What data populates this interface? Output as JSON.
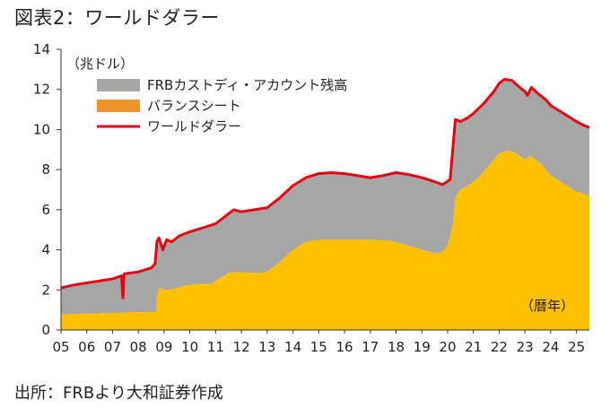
{
  "figure": {
    "title": "図表2：ワールドダラー",
    "source": "出所：FRBより大和証券作成"
  },
  "colors": {
    "custody": "#a6a6a6",
    "balance_sheet": "#ffc000",
    "balance_sheet_legend": "#f0932b",
    "world_dollar": "#e60012",
    "axis": "#333333"
  },
  "chart_data": {
    "type": "area",
    "ylabel": "（兆ドル）",
    "xlabel": "（暦年）",
    "ylim": [
      0,
      14
    ],
    "yticks": [
      0,
      2,
      4,
      6,
      8,
      10,
      12,
      14
    ],
    "xlim": [
      2005.0,
      2025.5
    ],
    "xtick_labels": [
      "05",
      "06",
      "07",
      "08",
      "09",
      "10",
      "11",
      "12",
      "13",
      "14",
      "15",
      "16",
      "17",
      "18",
      "19",
      "20",
      "21",
      "22",
      "23",
      "24",
      "25"
    ],
    "grid": false,
    "legend_position": "top-left",
    "legend": [
      {
        "key": "custody",
        "label": "FRBカストディ・アカウント残高",
        "kind": "area"
      },
      {
        "key": "balance_sheet",
        "label": "バランスシート",
        "kind": "area"
      },
      {
        "key": "world_dollar",
        "label": "ワールドダラー",
        "kind": "line"
      }
    ],
    "series": [
      {
        "key": "balance_sheet",
        "points": [
          [
            2005.0,
            0.78
          ],
          [
            2006.0,
            0.82
          ],
          [
            2007.0,
            0.85
          ],
          [
            2007.9,
            0.88
          ],
          [
            2008.7,
            0.9
          ],
          [
            2008.72,
            1.6
          ],
          [
            2008.8,
            2.1
          ],
          [
            2009.0,
            2.0
          ],
          [
            2009.4,
            2.05
          ],
          [
            2009.8,
            2.2
          ],
          [
            2010.3,
            2.3
          ],
          [
            2010.8,
            2.3
          ],
          [
            2011.2,
            2.6
          ],
          [
            2011.5,
            2.85
          ],
          [
            2011.9,
            2.9
          ],
          [
            2012.3,
            2.85
          ],
          [
            2012.8,
            2.85
          ],
          [
            2013.0,
            2.9
          ],
          [
            2013.5,
            3.4
          ],
          [
            2014.0,
            4.0
          ],
          [
            2014.5,
            4.4
          ],
          [
            2015.0,
            4.5
          ],
          [
            2016.0,
            4.5
          ],
          [
            2017.0,
            4.5
          ],
          [
            2017.8,
            4.45
          ],
          [
            2018.5,
            4.2
          ],
          [
            2019.0,
            4.0
          ],
          [
            2019.6,
            3.8
          ],
          [
            2019.8,
            3.9
          ],
          [
            2020.0,
            4.2
          ],
          [
            2020.2,
            5.2
          ],
          [
            2020.3,
            6.6
          ],
          [
            2020.5,
            7.0
          ],
          [
            2020.8,
            7.2
          ],
          [
            2021.2,
            7.6
          ],
          [
            2021.6,
            8.2
          ],
          [
            2022.0,
            8.8
          ],
          [
            2022.3,
            8.95
          ],
          [
            2022.6,
            8.85
          ],
          [
            2023.0,
            8.5
          ],
          [
            2023.2,
            8.7
          ],
          [
            2023.6,
            8.3
          ],
          [
            2024.0,
            7.7
          ],
          [
            2024.5,
            7.3
          ],
          [
            2025.0,
            6.9
          ],
          [
            2025.5,
            6.7
          ]
        ]
      },
      {
        "key": "world_dollar",
        "points": [
          [
            2005.0,
            2.1
          ],
          [
            2005.5,
            2.25
          ],
          [
            2006.0,
            2.35
          ],
          [
            2006.5,
            2.45
          ],
          [
            2007.0,
            2.55
          ],
          [
            2007.35,
            2.7
          ],
          [
            2007.4,
            1.6
          ],
          [
            2007.45,
            2.8
          ],
          [
            2008.0,
            2.9
          ],
          [
            2008.5,
            3.1
          ],
          [
            2008.65,
            3.3
          ],
          [
            2008.72,
            4.4
          ],
          [
            2008.8,
            4.6
          ],
          [
            2008.95,
            4.0
          ],
          [
            2009.1,
            4.5
          ],
          [
            2009.3,
            4.4
          ],
          [
            2009.6,
            4.7
          ],
          [
            2010.0,
            4.9
          ],
          [
            2010.5,
            5.1
          ],
          [
            2011.0,
            5.3
          ],
          [
            2011.3,
            5.6
          ],
          [
            2011.7,
            6.0
          ],
          [
            2012.0,
            5.9
          ],
          [
            2012.5,
            6.0
          ],
          [
            2013.0,
            6.1
          ],
          [
            2013.5,
            6.6
          ],
          [
            2014.0,
            7.2
          ],
          [
            2014.5,
            7.6
          ],
          [
            2015.0,
            7.8
          ],
          [
            2015.5,
            7.85
          ],
          [
            2016.0,
            7.8
          ],
          [
            2016.5,
            7.7
          ],
          [
            2017.0,
            7.6
          ],
          [
            2017.5,
            7.7
          ],
          [
            2018.0,
            7.85
          ],
          [
            2018.5,
            7.75
          ],
          [
            2019.0,
            7.6
          ],
          [
            2019.5,
            7.4
          ],
          [
            2019.8,
            7.25
          ],
          [
            2020.1,
            7.5
          ],
          [
            2020.2,
            9.0
          ],
          [
            2020.3,
            10.5
          ],
          [
            2020.5,
            10.4
          ],
          [
            2020.8,
            10.6
          ],
          [
            2021.0,
            10.8
          ],
          [
            2021.4,
            11.3
          ],
          [
            2021.8,
            11.9
          ],
          [
            2022.0,
            12.3
          ],
          [
            2022.2,
            12.5
          ],
          [
            2022.5,
            12.45
          ],
          [
            2022.8,
            12.1
          ],
          [
            2023.0,
            11.9
          ],
          [
            2023.1,
            11.7
          ],
          [
            2023.25,
            12.1
          ],
          [
            2023.5,
            11.8
          ],
          [
            2023.8,
            11.5
          ],
          [
            2024.0,
            11.2
          ],
          [
            2024.5,
            10.8
          ],
          [
            2025.0,
            10.4
          ],
          [
            2025.3,
            10.2
          ],
          [
            2025.5,
            10.1
          ]
        ]
      }
    ]
  }
}
